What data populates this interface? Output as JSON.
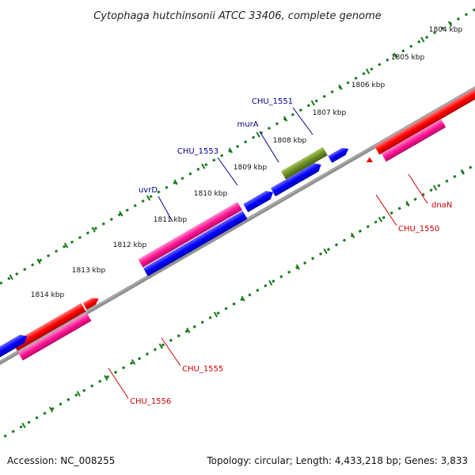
{
  "title": "Cytophaga hutchinsonii ATCC 33406, complete genome",
  "footer": {
    "accession": "Accession: NC_008255",
    "summary": "Topology: circular; Length: 4,433,218 bp; Genes: 3,833"
  },
  "colors": {
    "backbone": "#808080",
    "tick": "#1a7a1a",
    "forward_label": "#00008b",
    "reverse_label": "#cc0000",
    "red": "#ff0000",
    "blue": "#0000ff",
    "pink": "#ff1493",
    "olive": "#6b8e23",
    "green": "#228b22"
  },
  "ticks": [
    {
      "label": "1804 kbp"
    },
    {
      "label": "1805 kbp"
    },
    {
      "label": "1806 kbp"
    },
    {
      "label": "1807 kbp"
    },
    {
      "label": "1808 kbp"
    },
    {
      "label": "1809 kbp"
    },
    {
      "label": "1810 kbp"
    },
    {
      "label": "1811 kbp"
    },
    {
      "label": "1812 kbp"
    },
    {
      "label": "1813 kbp"
    },
    {
      "label": "1814 kbp"
    }
  ],
  "gene_labels": [
    {
      "text": "CHU_1551",
      "strand": "forward"
    },
    {
      "text": "murA",
      "strand": "forward"
    },
    {
      "text": "CHU_1553",
      "strand": "forward"
    },
    {
      "text": "uvrD",
      "strand": "forward"
    },
    {
      "text": "dnaN",
      "strand": "reverse"
    },
    {
      "text": "CHU_1550",
      "strand": "reverse"
    },
    {
      "text": "CHU_1555",
      "strand": "reverse"
    },
    {
      "text": "CHU_1556",
      "strand": "reverse"
    }
  ]
}
